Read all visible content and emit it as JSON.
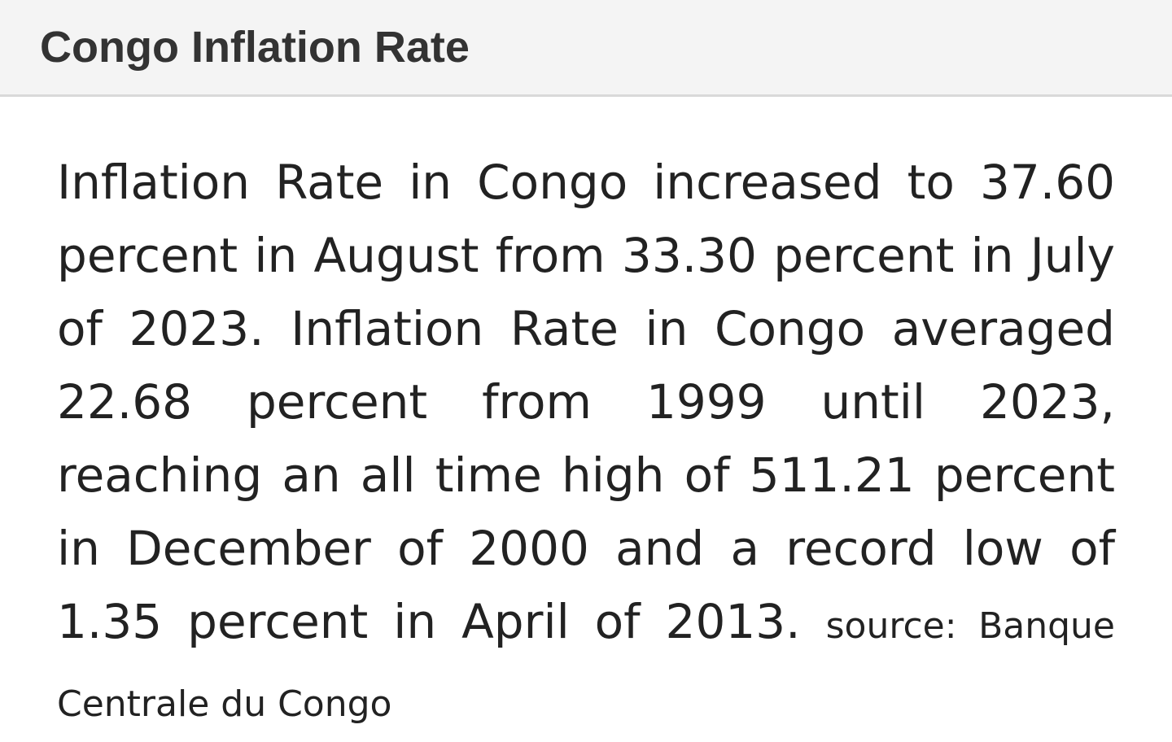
{
  "header": {
    "title": "Congo Inflation Rate"
  },
  "summary": {
    "text": "Inflation Rate in Congo increased to 37.60 percent in August from 33.30 percent in July of 2023. Inflation Rate in Congo averaged 22.68 percent from 1999 until 2023, reaching an all time high of 511.21 percent in December of 2000 and a record low of 1.35 percent in April of 2013.",
    "source": "source: Banque Centrale du Congo"
  }
}
